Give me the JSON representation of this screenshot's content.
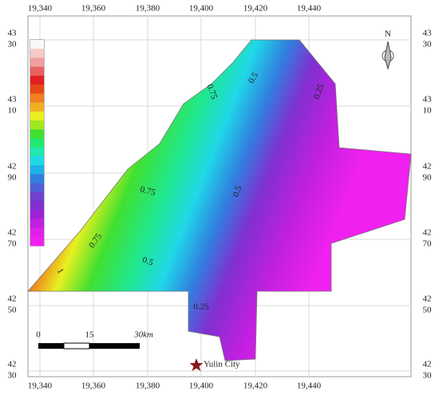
{
  "map": {
    "x_labels": [
      "19,340",
      "19,360",
      "19,380",
      "19,400",
      "19,420",
      "19,440"
    ],
    "y_labels": [
      [
        "43",
        "30"
      ],
      [
        "43",
        "10"
      ],
      [
        "42",
        "90"
      ],
      [
        "42",
        "70"
      ],
      [
        "42",
        "50"
      ],
      [
        "42",
        "30"
      ]
    ],
    "contour_labels": [
      "0.75",
      "0.5",
      "0.25",
      "0.75",
      "0.5",
      "0.75",
      "0.5",
      "1",
      "0.25"
    ],
    "scale_labels": [
      "0",
      "15",
      "30km"
    ],
    "north": "N",
    "place": "Yulin City"
  }
}
